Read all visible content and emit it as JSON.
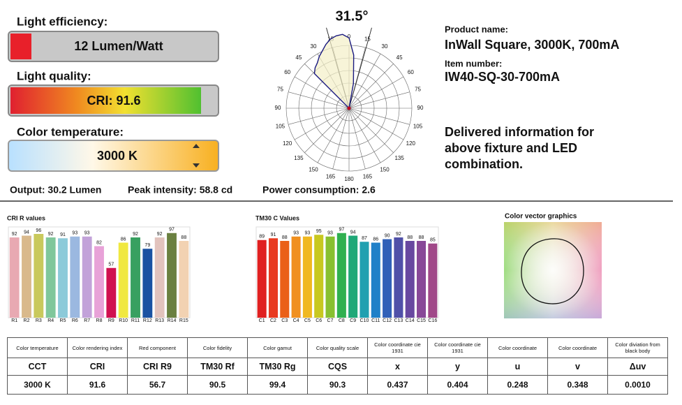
{
  "gauges": [
    {
      "label": "Light efficiency:",
      "value_text": "12 Lumen/Watt"
    },
    {
      "label": "Light quality:",
      "value_text": "CRI: 91.6"
    },
    {
      "label": "Color temperature:",
      "value_text": "3000 K"
    }
  ],
  "summary": [
    "Output: 30.2 Lumen",
    "Peak intensity: 58.8 cd",
    "Power consumption: 2.6"
  ],
  "product": {
    "name_label": "Product name:",
    "name": "InWall Square, 3000K, 700mA",
    "item_label": "Item number:",
    "item": "IW40-SQ-30-700mA",
    "note": [
      "Delivered information for",
      "above fixture and LED",
      "combination."
    ]
  },
  "color_vector": {
    "title": "Color vector graphics"
  },
  "chart_data": [
    {
      "type": "bar",
      "title": "CRI R values",
      "categories": [
        "R1",
        "R2",
        "R3",
        "R4",
        "R5",
        "R6",
        "R7",
        "R8",
        "R9",
        "R10",
        "R11",
        "R12",
        "R13",
        "R14",
        "R15"
      ],
      "values": [
        92,
        94,
        96,
        92,
        91,
        93,
        93,
        82,
        57,
        86,
        92,
        79,
        92,
        97,
        88
      ],
      "colors": [
        "#e8a9b2",
        "#d9b98c",
        "#c9c95c",
        "#80c79b",
        "#8ccad9",
        "#9bb8e0",
        "#c2a2d9",
        "#e8a2d8",
        "#d01050",
        "#f0e840",
        "#38a060",
        "#1a52a2",
        "#e2c3bd",
        "#6a8040",
        "#f2d2b2"
      ],
      "ylim": [
        0,
        100
      ]
    },
    {
      "type": "bar",
      "title": "TM30 C Values",
      "categories": [
        "C1",
        "C2",
        "C3",
        "C4",
        "C5",
        "C6",
        "C7",
        "C8",
        "C9",
        "C10",
        "C11",
        "C12",
        "C13",
        "C14",
        "C15",
        "C16"
      ],
      "values": [
        89,
        91,
        88,
        93,
        93,
        95,
        93,
        97,
        94,
        87,
        86,
        90,
        92,
        88,
        88,
        85
      ],
      "colors": [
        "#e02020",
        "#e83a20",
        "#ea6018",
        "#f09020",
        "#f0b820",
        "#c8c820",
        "#88c030",
        "#30b050",
        "#20a878",
        "#20a0b0",
        "#2080c8",
        "#3060b8",
        "#5050a8",
        "#6848a0",
        "#884898",
        "#a04888"
      ],
      "ylim": [
        0,
        100
      ]
    },
    {
      "type": "polar",
      "title": "31.5°",
      "beam_angle": 31.5,
      "angle_ticks": [
        0,
        15,
        30,
        45,
        60,
        75,
        90,
        105,
        120,
        135,
        150,
        165,
        180
      ],
      "x": [
        -50,
        -45,
        -40,
        -35,
        -30,
        -20,
        -15,
        -10,
        -5,
        0,
        5,
        10,
        15
      ],
      "values": [
        0,
        0.78,
        0.84,
        0.88,
        0.95,
        1.08,
        1.14,
        1.17,
        1.18,
        1.12,
        0.85,
        0.4,
        0
      ],
      "rlim": [
        0,
        1
      ]
    }
  ],
  "table": {
    "headers": [
      "Color temperature",
      "Color rendering index",
      "Red component",
      "Color fidelity",
      "Color gamut",
      "Color quality scale",
      "Color coordinate cie 1931",
      "Color coordinate cie 1931",
      "Color coordinate",
      "Color coordinate",
      "Color diviation from black body"
    ],
    "rows": [
      [
        "CCT",
        "CRI",
        "CRI R9",
        "TM30 Rf",
        "TM30 Rg",
        "CQS",
        "x",
        "y",
        "u",
        "v",
        "Δuv"
      ],
      [
        "3000 K",
        "91.6",
        "56.7",
        "90.5",
        "99.4",
        "90.3",
        "0.437",
        "0.404",
        "0.248",
        "0.348",
        "0.0010"
      ]
    ]
  }
}
